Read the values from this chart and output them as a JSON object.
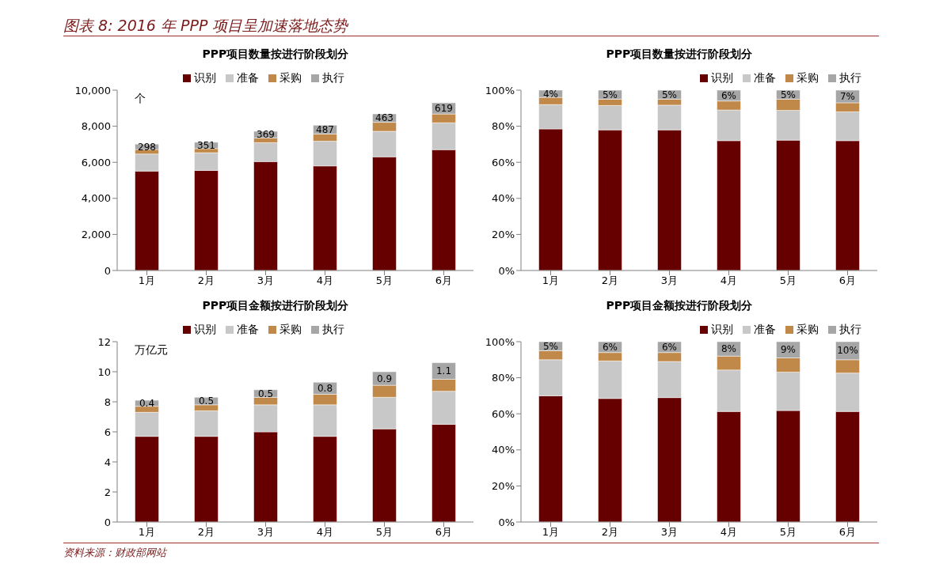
{
  "chart_data": [
    {
      "type": "other",
      "title": "图表 8: 2016 年 PPP 项目呈加速落地态势",
      "annotations": [
        "资料来源：财政部网站"
      ]
    },
    {
      "type": "bar",
      "stacked": true,
      "title": "PPP项目数量按进行阶段划分",
      "ylabel": "个",
      "categories": [
        "1月",
        "2月",
        "3月",
        "4月",
        "5月",
        "6月"
      ],
      "ylim": [
        0,
        10000
      ],
      "yticks": [
        0,
        {
          "value": 2000,
          "label": "2,000"
        },
        {
          "value": 4000,
          "label": "4,000"
        },
        {
          "value": 6000,
          "label": "6,000"
        },
        {
          "value": 8000,
          "label": "8,000"
        },
        {
          "value": 10000,
          "label": "10,000"
        }
      ],
      "legend": "top",
      "series": [
        {
          "name": "识别",
          "color": "#660000",
          "values": [
            5510,
            5550,
            6040,
            5800,
            6300,
            6700
          ]
        },
        {
          "name": "准备",
          "color": "#c8c8c8",
          "values": [
            950,
            980,
            1050,
            1370,
            1420,
            1490
          ]
        },
        {
          "name": "采购",
          "color": "#c0894a",
          "values": [
            250,
            230,
            260,
            400,
            500,
            490
          ]
        },
        {
          "name": "执行",
          "color": "#a6a6a6",
          "values": [
            298,
            351,
            369,
            487,
            463,
            619
          ],
          "value_labels": [
            "298",
            "351",
            "369",
            "487",
            "463",
            "619"
          ]
        }
      ]
    },
    {
      "type": "bar",
      "stacked": true,
      "title": "PPP项目数量按进行阶段划分",
      "categories": [
        "1月",
        "2月",
        "3月",
        "4月",
        "5月",
        "6月"
      ],
      "ylim": [
        0,
        100
      ],
      "yticks": [
        {
          "value": 0,
          "label": "0%"
        },
        {
          "value": 20,
          "label": "20%"
        },
        {
          "value": 40,
          "label": "40%"
        },
        {
          "value": 60,
          "label": "60%"
        },
        {
          "value": 80,
          "label": "80%"
        },
        {
          "value": 100,
          "label": "100%"
        }
      ],
      "legend": "top right",
      "series": [
        {
          "name": "识别",
          "color": "#660000",
          "values": [
            78.5,
            78,
            78,
            72,
            72.3,
            72
          ]
        },
        {
          "name": "准备",
          "color": "#c8c8c8",
          "values": [
            13.5,
            13.5,
            13.7,
            17,
            16.5,
            16
          ]
        },
        {
          "name": "采购",
          "color": "#c0894a",
          "values": [
            4,
            3.5,
            3.3,
            5,
            6.2,
            5
          ]
        },
        {
          "name": "执行",
          "color": "#a6a6a6",
          "values": [
            4,
            5,
            5,
            6,
            5,
            7
          ],
          "value_labels": [
            "4%",
            "5%",
            "5%",
            "6%",
            "5%",
            "7%"
          ]
        }
      ]
    },
    {
      "type": "bar",
      "stacked": true,
      "title": "PPP项目金额按进行阶段划分",
      "ylabel": "万亿元",
      "categories": [
        "1月",
        "2月",
        "3月",
        "4月",
        "5月",
        "6月"
      ],
      "ylim": [
        0,
        12
      ],
      "yticks": [
        0,
        2,
        4,
        6,
        8,
        10,
        12
      ],
      "legend": "top",
      "series": [
        {
          "name": "识别",
          "color": "#660000",
          "values": [
            5.7,
            5.7,
            6.0,
            5.7,
            6.2,
            6.5
          ]
        },
        {
          "name": "准备",
          "color": "#c8c8c8",
          "values": [
            1.6,
            1.7,
            1.8,
            2.1,
            2.1,
            2.2
          ]
        },
        {
          "name": "采购",
          "color": "#c0894a",
          "values": [
            0.4,
            0.4,
            0.5,
            0.7,
            0.8,
            0.8
          ]
        },
        {
          "name": "执行",
          "color": "#a6a6a6",
          "values": [
            0.4,
            0.5,
            0.5,
            0.8,
            0.9,
            1.1
          ],
          "value_labels": [
            "0.4",
            "0.5",
            "0.5",
            "0.8",
            "0.9",
            "1.1"
          ]
        }
      ]
    },
    {
      "type": "bar",
      "stacked": true,
      "title": "PPP项目金额按进行阶段划分",
      "categories": [
        "1月",
        "2月",
        "3月",
        "4月",
        "5月",
        "6月"
      ],
      "ylim": [
        0,
        100
      ],
      "yticks": [
        {
          "value": 0,
          "label": "0%"
        },
        {
          "value": 20,
          "label": "20%"
        },
        {
          "value": 40,
          "label": "40%"
        },
        {
          "value": 60,
          "label": "60%"
        },
        {
          "value": 80,
          "label": "80%"
        },
        {
          "value": 100,
          "label": "100%"
        }
      ],
      "legend": "top right",
      "series": [
        {
          "name": "识别",
          "color": "#660000",
          "values": [
            70,
            68.5,
            69,
            61.3,
            61.8,
            61.3
          ]
        },
        {
          "name": "准备",
          "color": "#c8c8c8",
          "values": [
            20,
            20.8,
            20,
            23,
            21.3,
            21.3
          ]
        },
        {
          "name": "采购",
          "color": "#c0894a",
          "values": [
            5,
            4.7,
            5,
            7.7,
            7.9,
            7.4
          ]
        },
        {
          "name": "执行",
          "color": "#a6a6a6",
          "values": [
            5,
            6,
            6,
            8,
            9,
            10
          ],
          "value_labels": [
            "5%",
            "6%",
            "6%",
            "8%",
            "9%",
            "10%"
          ]
        }
      ]
    }
  ]
}
